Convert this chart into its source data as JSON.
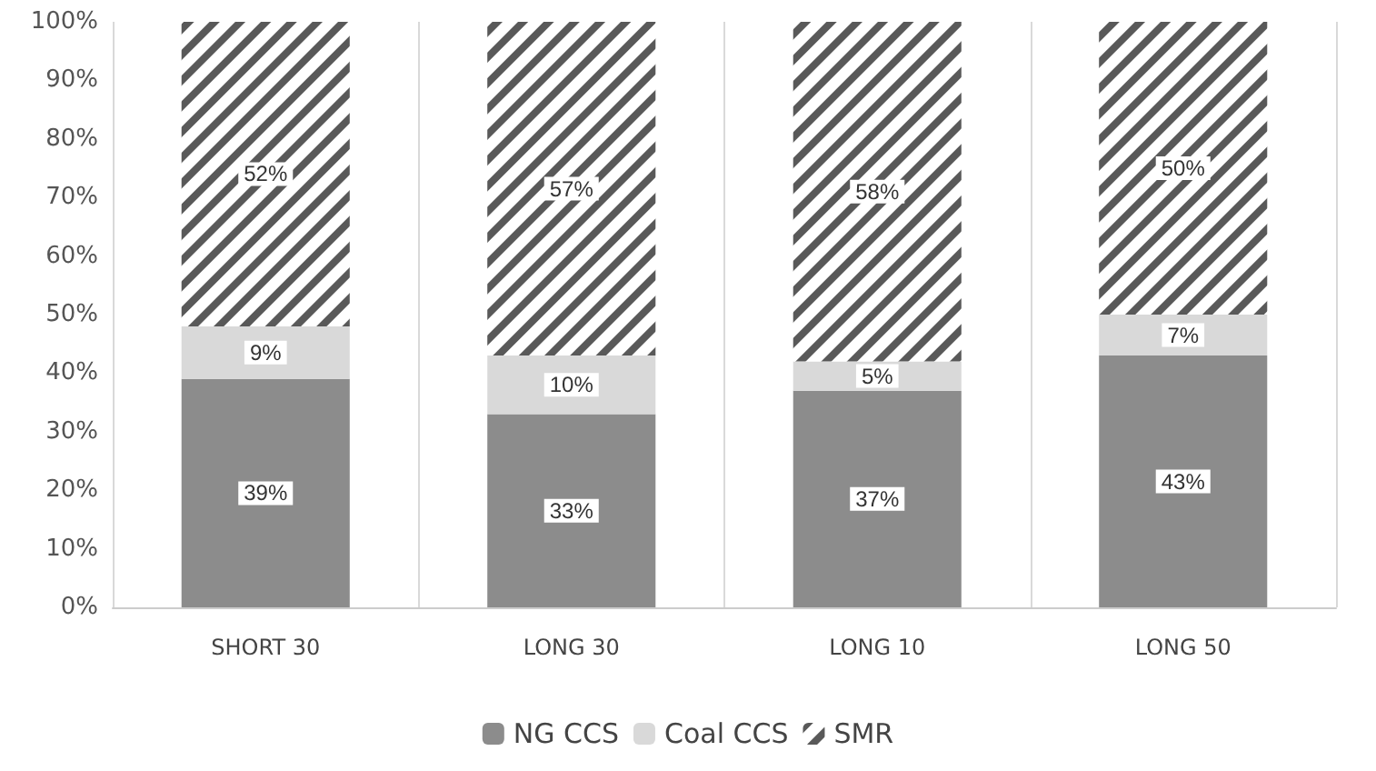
{
  "chart_data": {
    "type": "bar",
    "stacked": true,
    "categories": [
      "SHORT 30",
      "LONG 30",
      "LONG 10",
      "LONG 50"
    ],
    "series": [
      {
        "name": "NG CCS",
        "color": "#8c8c8c",
        "values": [
          39,
          33,
          37,
          43
        ],
        "value_labels": [
          "39%",
          "33%",
          "37%",
          "43%"
        ]
      },
      {
        "name": "Coal CCS",
        "color": "#d9d9d9",
        "values": [
          9,
          10,
          5,
          7
        ],
        "value_labels": [
          "9%",
          "10%",
          "5%",
          "7%"
        ]
      },
      {
        "name": "SMR",
        "color": "#595959",
        "values": [
          52,
          57,
          58,
          50
        ],
        "value_labels": [
          "52%",
          "57%",
          "58%",
          "50%"
        ]
      }
    ],
    "ylim": [
      0,
      100
    ],
    "yticks": [
      {
        "value": 0,
        "label": "0%"
      },
      {
        "value": 10,
        "label": "10%"
      },
      {
        "value": 20,
        "label": "20%"
      },
      {
        "value": 30,
        "label": "30%"
      },
      {
        "value": 40,
        "label": "40%"
      },
      {
        "value": 50,
        "label": "50%"
      },
      {
        "value": 60,
        "label": "60%"
      },
      {
        "value": 70,
        "label": "70%"
      },
      {
        "value": 80,
        "label": "80%"
      },
      {
        "value": 90,
        "label": "90%"
      },
      {
        "value": 100,
        "label": "100%"
      }
    ],
    "grid": "x",
    "legend": "bottom"
  }
}
